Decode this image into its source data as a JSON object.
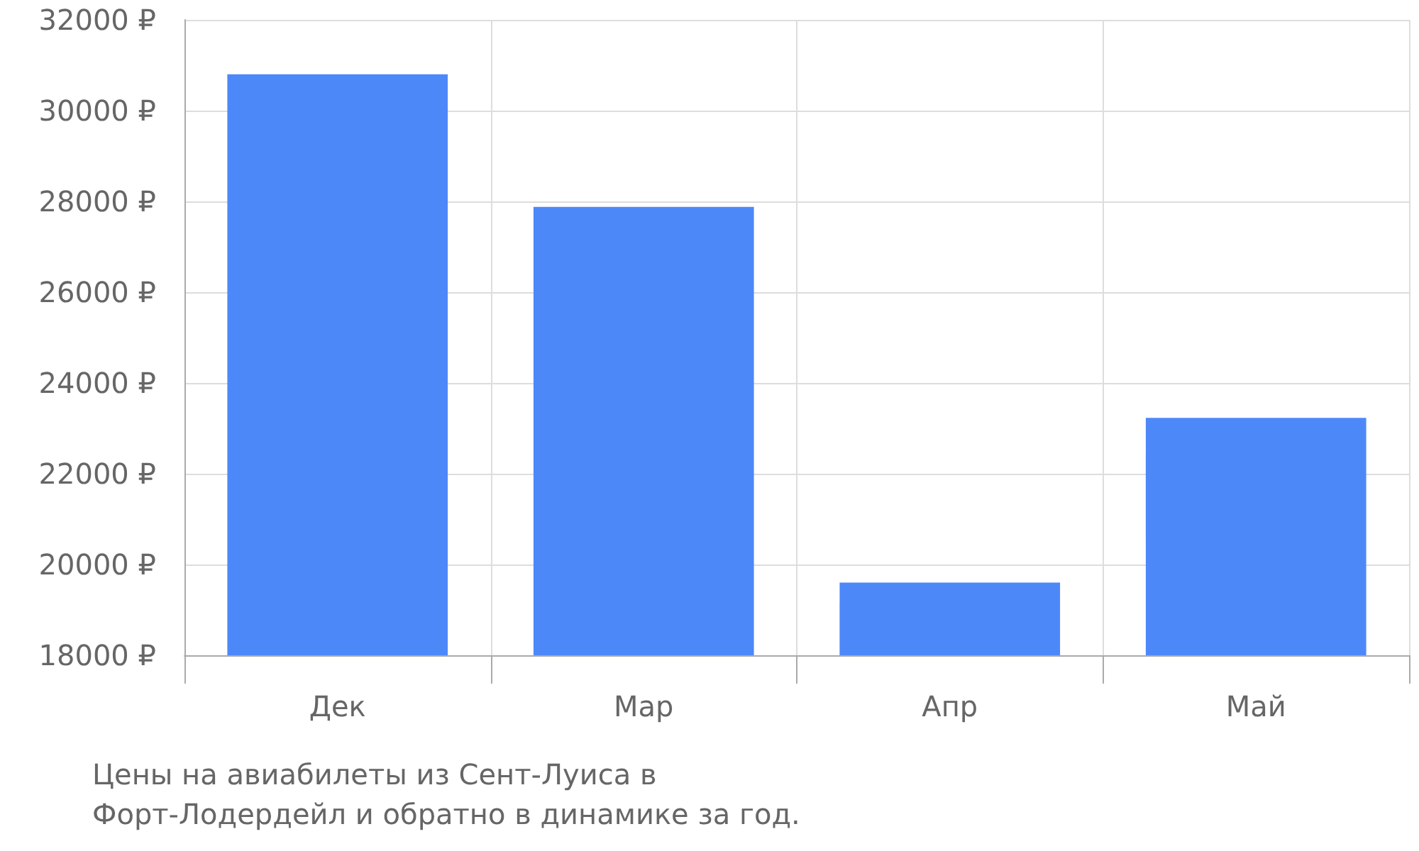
{
  "chart_data": {
    "type": "bar",
    "categories": [
      "Дек",
      "Мар",
      "Апр",
      "Май"
    ],
    "values": [
      30800,
      27880,
      19600,
      23230
    ],
    "color": "#4d88f9",
    "ylim": [
      18000,
      32000
    ],
    "yticks": [
      {
        "value": 18000,
        "label": "18000 ₽"
      },
      {
        "value": 20000,
        "label": "20000 ₽"
      },
      {
        "value": 22000,
        "label": "22000 ₽"
      },
      {
        "value": 24000,
        "label": "24000 ₽"
      },
      {
        "value": 26000,
        "label": "26000 ₽"
      },
      {
        "value": 28000,
        "label": "28000 ₽"
      },
      {
        "value": 30000,
        "label": "30000 ₽"
      },
      {
        "value": 32000,
        "label": "32000 ₽"
      }
    ],
    "grid": true,
    "annotations": [
      "Цены на авиабилеты из Сент-Луиса в Форт-Лодердейл и обратно в динамике за год."
    ]
  }
}
